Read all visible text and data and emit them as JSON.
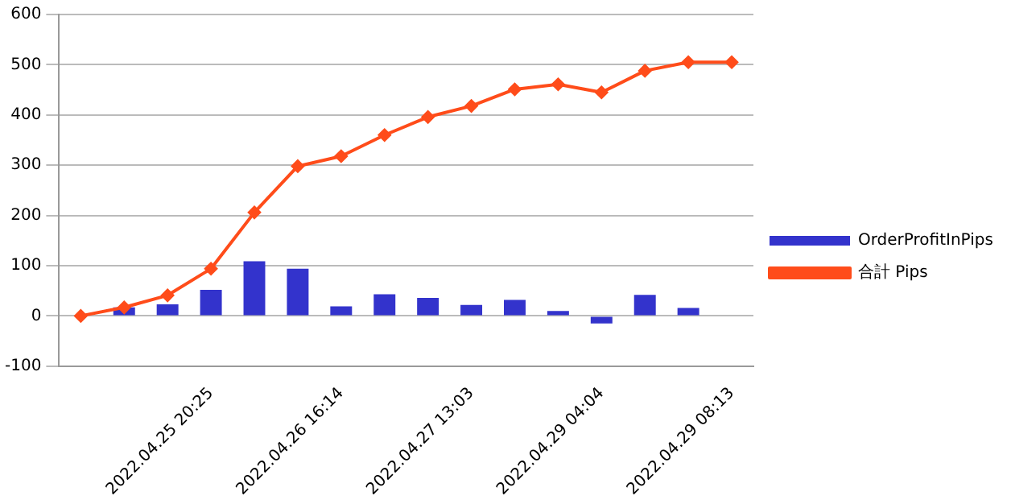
{
  "chart_data": {
    "type": "bar",
    "categories": [
      null,
      null,
      null,
      "2022.04.25 20:25",
      null,
      null,
      "2022.04.26 16:14",
      null,
      null,
      "2022.04.27 13:03",
      null,
      null,
      "2022.04.29 04:04",
      null,
      null,
      "2022.04.29 08:13"
    ],
    "series": [
      {
        "name": "OrderProfitInPips",
        "color": "#3333cc",
        "values": [
          null,
          17,
          23,
          52,
          109,
          94,
          19,
          43,
          36,
          22,
          32,
          10,
          -15,
          42,
          16,
          null
        ]
      },
      {
        "name": "合計 Pips",
        "type": "line",
        "color": "#ff4c1a",
        "values": [
          0,
          17,
          41,
          94,
          206,
          298,
          318,
          360,
          396,
          418,
          451,
          461,
          445,
          488,
          505,
          505
        ]
      }
    ],
    "ylim": [
      -100,
      600
    ],
    "yticks": [
      -100,
      0,
      100,
      200,
      300,
      400,
      500,
      600
    ],
    "grid": "y",
    "legend": "right",
    "marker": "diamond"
  }
}
